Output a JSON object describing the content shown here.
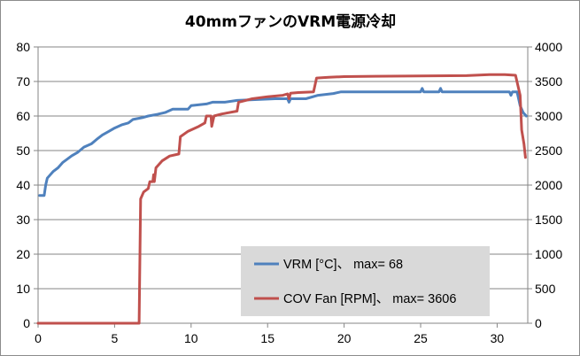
{
  "chart_data": {
    "type": "line",
    "title": "40mmファンのVRM電源冷却",
    "xlim": [
      0,
      32
    ],
    "x_ticks": [
      0,
      5,
      10,
      15,
      20,
      25,
      30
    ],
    "y_left": {
      "range": [
        0,
        80
      ],
      "ticks": [
        0,
        10,
        20,
        30,
        40,
        50,
        60,
        70,
        80
      ]
    },
    "y_right": {
      "range": [
        0,
        4000
      ],
      "ticks": [
        0,
        500,
        1000,
        1500,
        2000,
        2500,
        3000,
        3500,
        4000
      ]
    },
    "grid": "horizontal",
    "legend_position": "lower-right",
    "series": [
      {
        "name": "VRM [°C]、 max= 68",
        "axis": "left",
        "color": "#4f81bd",
        "points": [
          [
            0.1,
            37
          ],
          [
            0.4,
            37
          ],
          [
            0.5,
            40
          ],
          [
            0.6,
            42
          ],
          [
            0.8,
            43
          ],
          [
            1.0,
            44
          ],
          [
            1.3,
            45
          ],
          [
            1.6,
            46.5
          ],
          [
            1.9,
            47.5
          ],
          [
            2.2,
            48.5
          ],
          [
            2.6,
            49.5
          ],
          [
            3.0,
            51
          ],
          [
            3.5,
            52
          ],
          [
            3.9,
            53.5
          ],
          [
            4.2,
            54.5
          ],
          [
            4.6,
            55.5
          ],
          [
            5.0,
            56.5
          ],
          [
            5.5,
            57.5
          ],
          [
            5.9,
            58
          ],
          [
            6.2,
            59
          ],
          [
            6.8,
            59.5
          ],
          [
            7.2,
            60
          ],
          [
            7.8,
            60.5
          ],
          [
            8.3,
            61
          ],
          [
            8.8,
            62
          ],
          [
            9.8,
            62
          ],
          [
            10.0,
            63
          ],
          [
            11.0,
            63.5
          ],
          [
            11.4,
            64
          ],
          [
            12.2,
            64
          ],
          [
            13.0,
            64.5
          ],
          [
            15.5,
            65
          ],
          [
            16.3,
            65
          ],
          [
            16.4,
            64
          ],
          [
            16.5,
            65
          ],
          [
            17.5,
            65
          ],
          [
            18.3,
            66
          ],
          [
            19.3,
            66.5
          ],
          [
            19.8,
            67
          ],
          [
            25.0,
            67
          ],
          [
            25.1,
            68
          ],
          [
            25.2,
            67
          ],
          [
            26.2,
            67
          ],
          [
            26.3,
            68
          ],
          [
            26.4,
            67
          ],
          [
            30.0,
            67
          ],
          [
            30.8,
            67
          ],
          [
            30.9,
            66
          ],
          [
            31.0,
            67
          ],
          [
            31.3,
            67
          ],
          [
            31.5,
            63
          ],
          [
            31.7,
            61
          ],
          [
            31.9,
            60
          ]
        ]
      },
      {
        "name": "COV Fan [RPM]、 max= 3606",
        "axis": "right",
        "color": "#c0504d",
        "points": [
          [
            0,
            0
          ],
          [
            6.6,
            0
          ],
          [
            6.7,
            1800
          ],
          [
            6.9,
            1900
          ],
          [
            7.2,
            1950
          ],
          [
            7.3,
            2050
          ],
          [
            7.5,
            2050
          ],
          [
            7.55,
            2150
          ],
          [
            7.6,
            2050
          ],
          [
            7.7,
            2250
          ],
          [
            8.1,
            2350
          ],
          [
            8.6,
            2420
          ],
          [
            9.2,
            2450
          ],
          [
            9.3,
            2700
          ],
          [
            9.8,
            2780
          ],
          [
            10.5,
            2850
          ],
          [
            10.9,
            2900
          ],
          [
            11.0,
            3000
          ],
          [
            11.3,
            3000
          ],
          [
            11.35,
            2850
          ],
          [
            11.5,
            3000
          ],
          [
            12.0,
            3030
          ],
          [
            13.0,
            3070
          ],
          [
            13.1,
            3200
          ],
          [
            14.0,
            3250
          ],
          [
            15.0,
            3280
          ],
          [
            16.0,
            3300
          ],
          [
            16.3,
            3320
          ],
          [
            16.4,
            3250
          ],
          [
            16.5,
            3330
          ],
          [
            17.0,
            3340
          ],
          [
            18.0,
            3350
          ],
          [
            18.2,
            3550
          ],
          [
            19.0,
            3560
          ],
          [
            20.0,
            3570
          ],
          [
            22.0,
            3575
          ],
          [
            25.0,
            3580
          ],
          [
            28.0,
            3585
          ],
          [
            29.5,
            3600
          ],
          [
            30.5,
            3600
          ],
          [
            31.2,
            3590
          ],
          [
            31.5,
            3300
          ],
          [
            31.6,
            2800
          ],
          [
            31.75,
            2600
          ],
          [
            31.85,
            2400
          ]
        ]
      }
    ]
  },
  "colors": {
    "grid": "#868686",
    "axis": "#868686",
    "legend_bg": "#d9d9d9"
  }
}
